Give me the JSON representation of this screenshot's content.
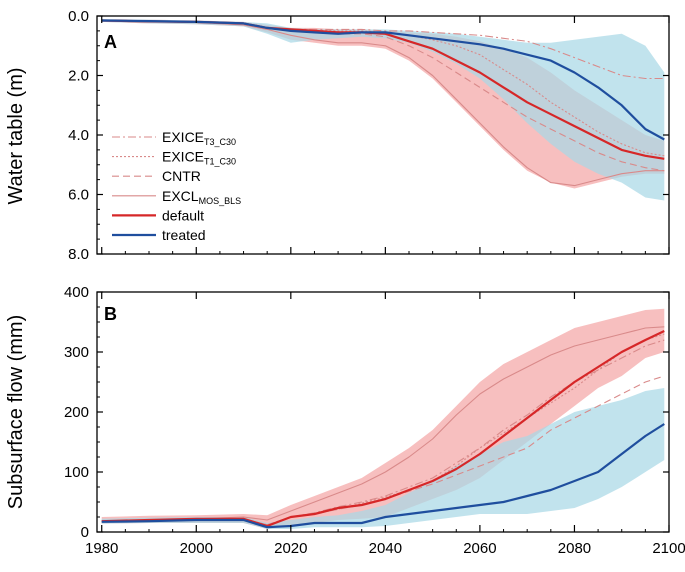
{
  "chart_data": [
    {
      "panel": "A",
      "type": "line",
      "ylabel": "Water table (m)",
      "xlim": [
        1979,
        2100
      ],
      "ylim": [
        0,
        8
      ],
      "y_inverted": true,
      "yticks": [
        "0.0",
        "2.0",
        "4.0",
        "6.0",
        "8.0"
      ],
      "ytick_values": [
        0,
        2,
        4,
        6,
        8
      ],
      "legend": [
        {
          "base": "EXICE",
          "sub": "T3_C30",
          "style": "dashdot",
          "color": "#d98a8a"
        },
        {
          "base": "EXICE",
          "sub": "T1_C30",
          "style": "dotted",
          "color": "#d98a8a"
        },
        {
          "base": "CNTR",
          "sub": "",
          "style": "dashed",
          "color": "#d98a8a"
        },
        {
          "base": "EXCL",
          "sub": "MOS_BLS",
          "style": "thin",
          "color": "#d98a8a"
        },
        {
          "base": "default",
          "sub": "",
          "style": "solid",
          "color": "#d62728"
        },
        {
          "base": "treated",
          "sub": "",
          "style": "solid",
          "color": "#1f4e9e"
        }
      ],
      "x": [
        1980,
        1990,
        2000,
        2010,
        2015,
        2020,
        2025,
        2030,
        2035,
        2040,
        2045,
        2050,
        2055,
        2060,
        2065,
        2070,
        2075,
        2080,
        2085,
        2090,
        2095,
        2099
      ],
      "series": [
        {
          "name": "default",
          "values": [
            0.15,
            0.18,
            0.2,
            0.25,
            0.4,
            0.45,
            0.5,
            0.55,
            0.55,
            0.6,
            0.85,
            1.1,
            1.5,
            1.9,
            2.4,
            2.9,
            3.3,
            3.7,
            4.1,
            4.5,
            4.7,
            4.8
          ]
        },
        {
          "name": "treated",
          "values": [
            0.15,
            0.17,
            0.2,
            0.25,
            0.4,
            0.5,
            0.55,
            0.6,
            0.55,
            0.55,
            0.65,
            0.75,
            0.85,
            0.95,
            1.1,
            1.3,
            1.5,
            1.9,
            2.4,
            3.0,
            3.8,
            4.15
          ]
        },
        {
          "name": "EXCL_MOS_BLS",
          "values": [
            0.15,
            0.18,
            0.22,
            0.3,
            0.45,
            0.65,
            0.8,
            0.9,
            0.9,
            1.0,
            1.4,
            2.0,
            2.8,
            3.6,
            4.4,
            5.1,
            5.6,
            5.7,
            5.5,
            5.3,
            5.2,
            5.2
          ]
        },
        {
          "name": "EXICE_T3_C30",
          "values": [
            0.15,
            0.18,
            0.22,
            0.28,
            0.4,
            0.45,
            0.45,
            0.45,
            0.45,
            0.5,
            0.5,
            0.55,
            0.6,
            0.65,
            0.75,
            0.85,
            1.1,
            1.4,
            1.7,
            2.0,
            2.1,
            2.1
          ]
        },
        {
          "name": "EXICE_T1_C30",
          "values": [
            0.15,
            0.18,
            0.22,
            0.28,
            0.4,
            0.45,
            0.48,
            0.5,
            0.5,
            0.55,
            0.65,
            0.8,
            1.0,
            1.3,
            1.8,
            2.3,
            2.9,
            3.4,
            3.9,
            4.3,
            4.6,
            4.7
          ]
        },
        {
          "name": "CNTR",
          "values": [
            0.15,
            0.18,
            0.22,
            0.28,
            0.4,
            0.5,
            0.55,
            0.6,
            0.6,
            0.7,
            1.0,
            1.4,
            1.9,
            2.4,
            2.9,
            3.4,
            3.8,
            4.2,
            4.6,
            4.9,
            5.1,
            5.2
          ]
        }
      ],
      "bands": [
        {
          "name": "default_range",
          "color": "#f4a6a6",
          "low": [
            0.1,
            0.12,
            0.15,
            0.2,
            0.3,
            0.4,
            0.4,
            0.45,
            0.45,
            0.5,
            0.55,
            0.6,
            0.7,
            0.85,
            1.1,
            1.4,
            1.9,
            2.5,
            3.0,
            3.5,
            4.0,
            4.2
          ],
          "high": [
            0.2,
            0.25,
            0.28,
            0.35,
            0.55,
            0.8,
            0.9,
            1.0,
            1.0,
            1.1,
            1.5,
            2.1,
            2.9,
            3.7,
            4.5,
            5.2,
            5.6,
            5.8,
            5.6,
            5.4,
            5.3,
            5.3
          ]
        },
        {
          "name": "treated_range",
          "color": "#a9d8e6",
          "low": [
            0.1,
            0.12,
            0.15,
            0.2,
            0.25,
            0.4,
            0.45,
            0.45,
            0.45,
            0.45,
            0.5,
            0.55,
            0.6,
            0.7,
            0.8,
            0.9,
            0.9,
            0.8,
            0.7,
            0.6,
            1.0,
            1.9
          ],
          "high": [
            0.2,
            0.25,
            0.28,
            0.35,
            0.6,
            0.9,
            0.8,
            0.75,
            0.7,
            0.75,
            0.9,
            1.2,
            1.6,
            2.1,
            2.8,
            3.6,
            4.3,
            4.9,
            5.3,
            5.6,
            6.1,
            6.2
          ]
        }
      ]
    },
    {
      "panel": "B",
      "type": "line",
      "ylabel": "Subsurface flow (mm)",
      "xlabel": "",
      "xlim": [
        1979,
        2100
      ],
      "ylim": [
        0,
        400
      ],
      "yticks": [
        "0",
        "100",
        "200",
        "300",
        "400"
      ],
      "ytick_values": [
        0,
        100,
        200,
        300,
        400
      ],
      "xticks": [
        "1980",
        "2000",
        "2020",
        "2040",
        "2060",
        "2080",
        "2100"
      ],
      "xtick_values": [
        1980,
        2000,
        2020,
        2040,
        2060,
        2080,
        2100
      ],
      "x": [
        1980,
        1990,
        2000,
        2010,
        2015,
        2020,
        2025,
        2030,
        2035,
        2040,
        2045,
        2050,
        2055,
        2060,
        2065,
        2070,
        2075,
        2080,
        2085,
        2090,
        2095,
        2099
      ],
      "series": [
        {
          "name": "default",
          "values": [
            18,
            20,
            22,
            22,
            10,
            25,
            30,
            40,
            45,
            55,
            70,
            85,
            105,
            130,
            160,
            190,
            220,
            250,
            275,
            300,
            320,
            335
          ]
        },
        {
          "name": "treated",
          "values": [
            17,
            18,
            20,
            20,
            8,
            10,
            15,
            15,
            15,
            25,
            30,
            35,
            40,
            45,
            50,
            60,
            70,
            85,
            100,
            130,
            160,
            180
          ]
        },
        {
          "name": "EXCL_MOS_BLS",
          "values": [
            18,
            20,
            22,
            25,
            20,
            35,
            50,
            65,
            80,
            100,
            125,
            155,
            195,
            230,
            255,
            275,
            295,
            310,
            320,
            330,
            340,
            342
          ]
        },
        {
          "name": "EXICE_T3_C30",
          "values": [
            18,
            20,
            22,
            22,
            12,
            25,
            32,
            42,
            50,
            60,
            75,
            90,
            115,
            140,
            170,
            195,
            225,
            250,
            270,
            290,
            310,
            320
          ]
        },
        {
          "name": "EXICE_T1_C30",
          "values": [
            18,
            20,
            22,
            22,
            12,
            25,
            30,
            38,
            48,
            58,
            70,
            85,
            110,
            140,
            165,
            190,
            215,
            240,
            270,
            300,
            320,
            330
          ]
        },
        {
          "name": "CNTR",
          "values": [
            18,
            20,
            22,
            22,
            12,
            25,
            30,
            38,
            45,
            55,
            68,
            80,
            95,
            110,
            125,
            140,
            170,
            190,
            210,
            230,
            250,
            260
          ]
        }
      ],
      "bands": [
        {
          "name": "default_range",
          "color": "#f4a6a6",
          "low": [
            14,
            15,
            15,
            15,
            5,
            10,
            15,
            20,
            22,
            25,
            40,
            55,
            70,
            90,
            120,
            150,
            180,
            210,
            240,
            260,
            290,
            300
          ],
          "high": [
            25,
            27,
            28,
            30,
            28,
            45,
            60,
            75,
            90,
            115,
            140,
            170,
            210,
            250,
            280,
            300,
            320,
            340,
            350,
            360,
            370,
            372
          ]
        },
        {
          "name": "treated_range",
          "color": "#a9d8e6",
          "low": [
            14,
            15,
            15,
            15,
            5,
            5,
            8,
            8,
            8,
            10,
            15,
            20,
            25,
            30,
            30,
            30,
            35,
            40,
            55,
            75,
            100,
            120
          ],
          "high": [
            22,
            24,
            25,
            25,
            15,
            20,
            25,
            28,
            35,
            45,
            65,
            85,
            110,
            130,
            150,
            160,
            180,
            200,
            210,
            220,
            235,
            240
          ]
        }
      ]
    }
  ]
}
